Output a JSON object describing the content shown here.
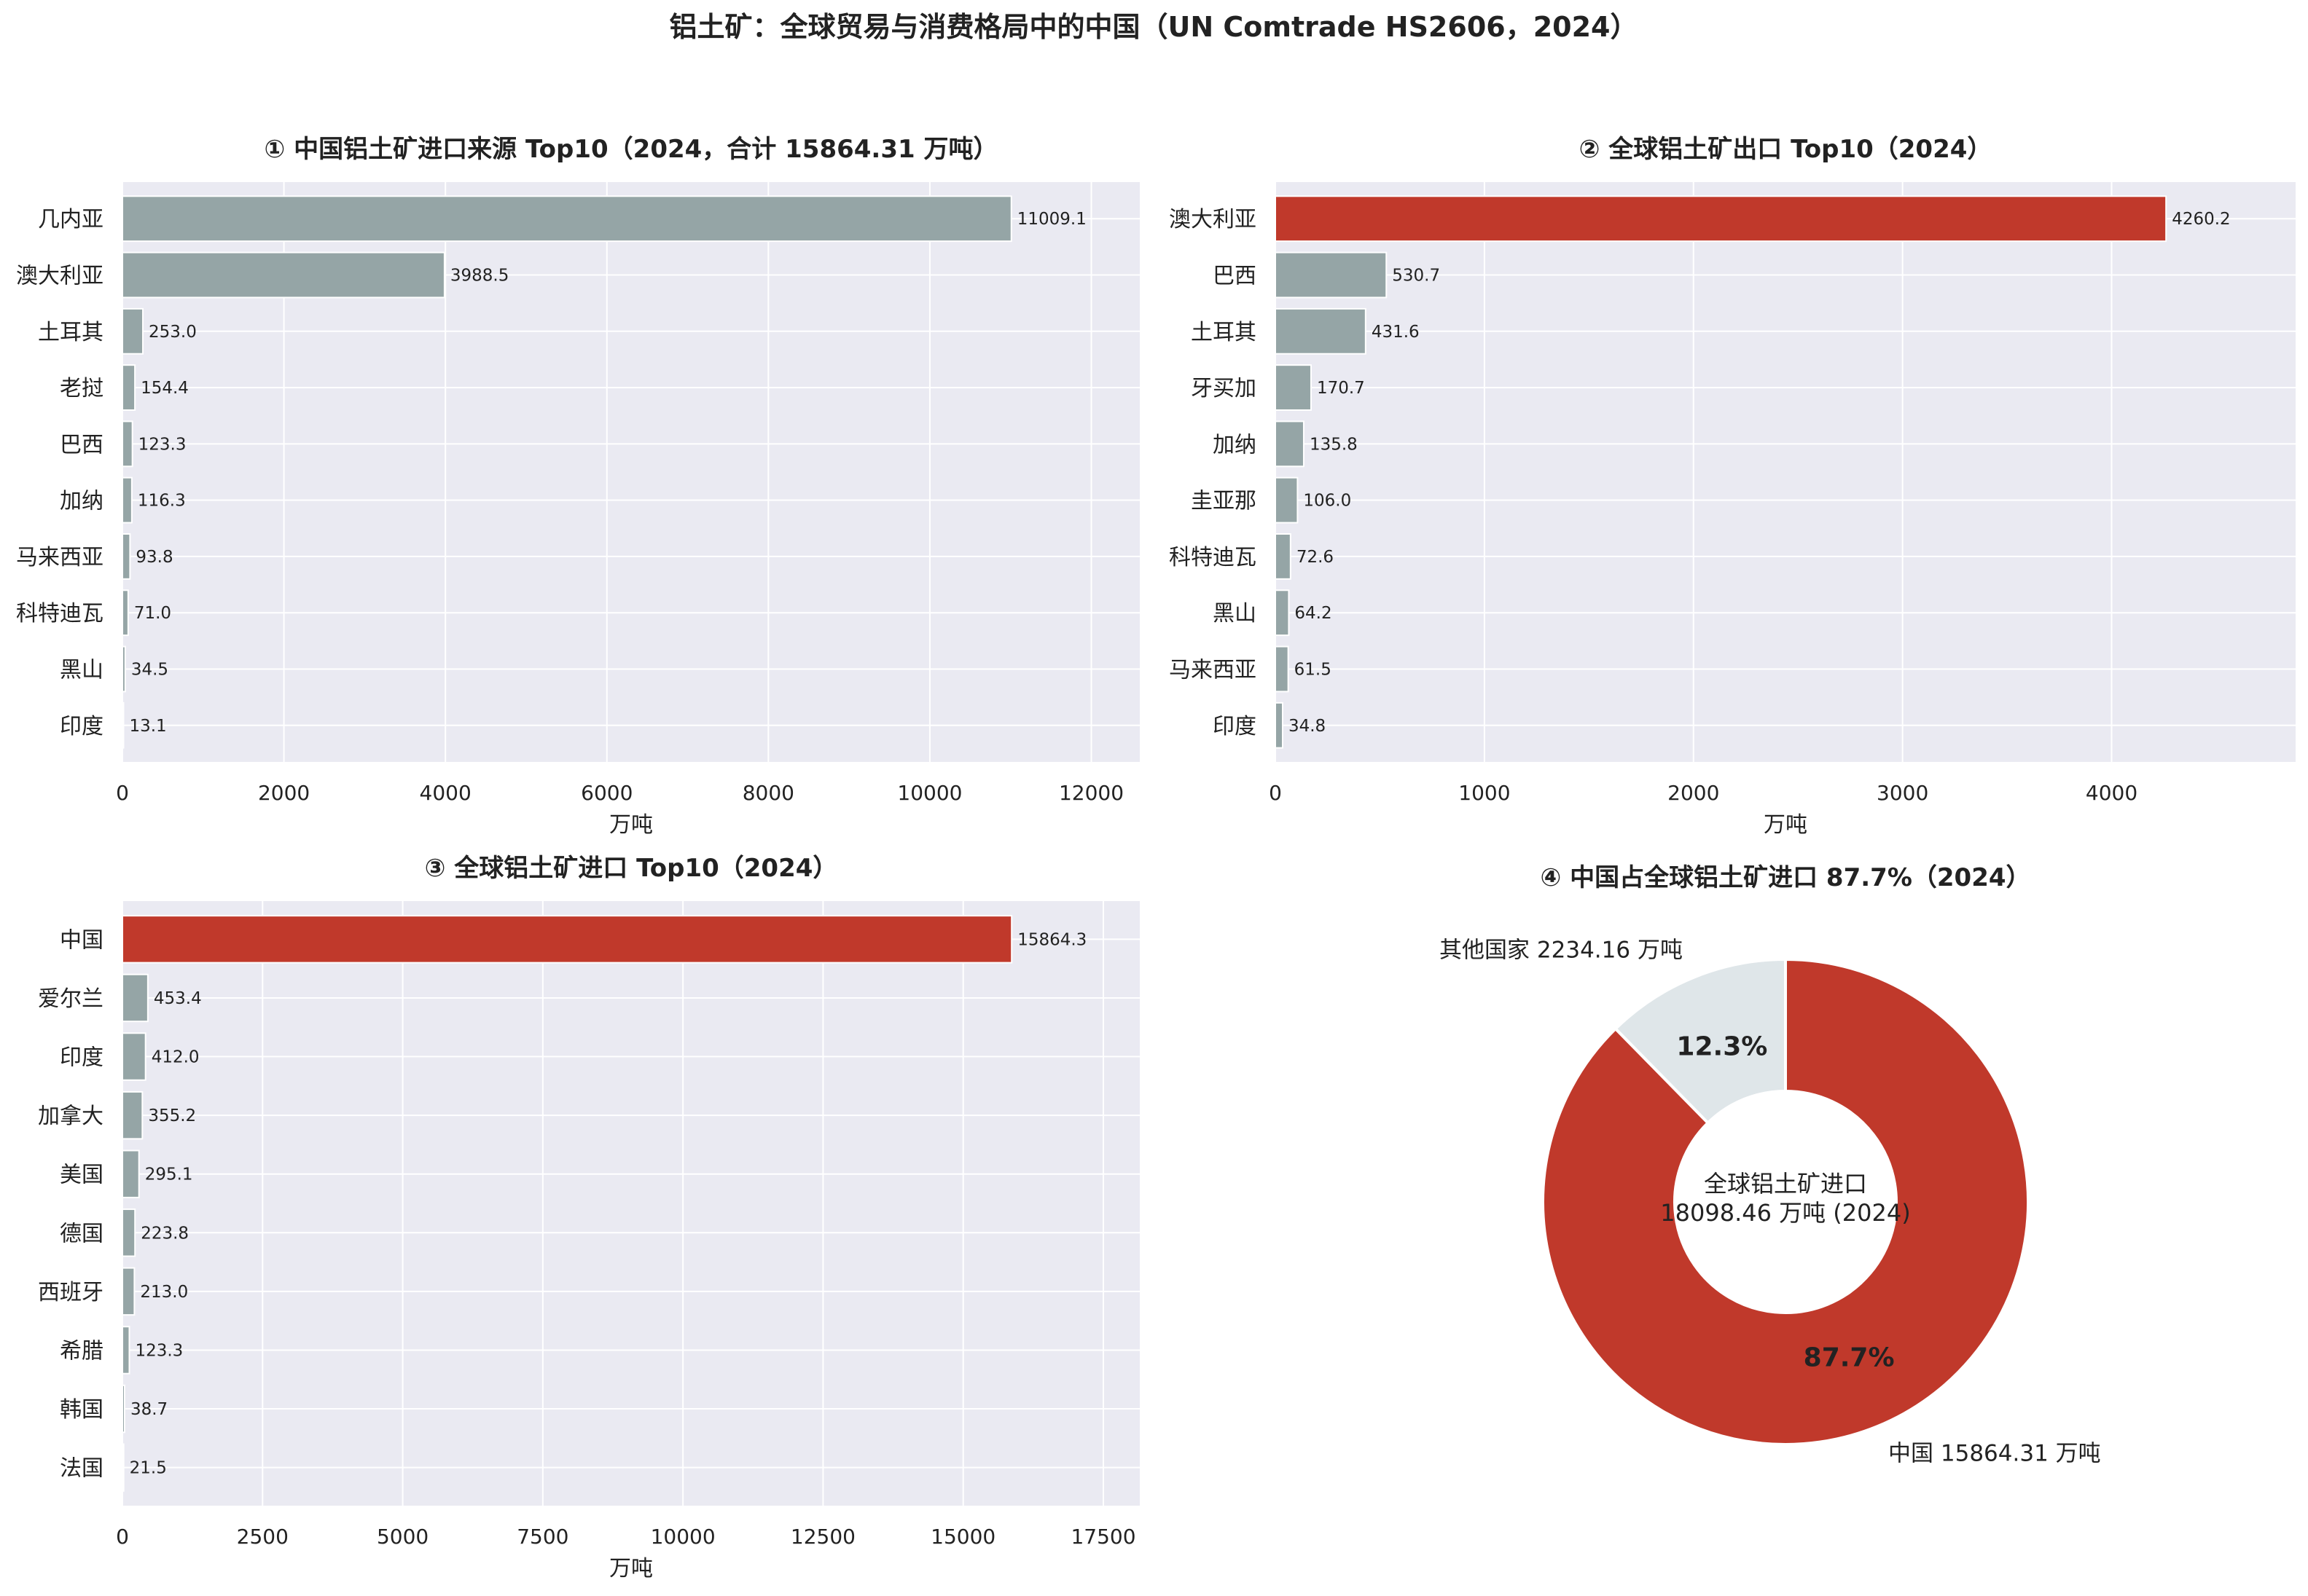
{
  "suptitle": "铝土矿：全球贸易与消费格局中的中国（UN Comtrade HS2606，2024）",
  "colors": {
    "highlight": "#c0392b",
    "bar": "#95a5a6",
    "plot_bg": "#eaeaf2",
    "grid": "#ffffff",
    "pie_other": "#dfe6e9",
    "text": "#222222"
  },
  "chart_data": [
    {
      "type": "bar",
      "orientation": "horizontal",
      "title": "① 中国铝土矿进口来源 Top10（2024，合计 15864.31 万吨）",
      "xlabel": "万吨",
      "xlim": [
        0,
        12600
      ],
      "xticks": [
        0,
        2000,
        4000,
        6000,
        8000,
        10000,
        12000
      ],
      "categories": [
        "几内亚",
        "澳大利亚",
        "土耳其",
        "老挝",
        "巴西",
        "加纳",
        "马来西亚",
        "科特迪瓦",
        "黑山",
        "印度"
      ],
      "values": [
        11009.1,
        3988.5,
        253.0,
        154.4,
        123.3,
        116.3,
        93.8,
        71.0,
        34.5,
        13.1
      ],
      "value_labels": [
        "11009.1",
        "3988.5",
        "253.0",
        "154.4",
        "123.3",
        "116.3",
        "93.8",
        "71.0",
        "34.5",
        "13.1"
      ],
      "highlight_index": -1,
      "grid": true
    },
    {
      "type": "bar",
      "orientation": "horizontal",
      "title": "② 全球铝土矿出口 Top10（2024）",
      "xlabel": "万吨",
      "xlim": [
        0,
        4880
      ],
      "xticks": [
        0,
        1000,
        2000,
        3000,
        4000
      ],
      "categories": [
        "澳大利亚",
        "巴西",
        "土耳其",
        "牙买加",
        "加纳",
        "圭亚那",
        "科特迪瓦",
        "黑山",
        "马来西亚",
        "印度"
      ],
      "values": [
        4260.2,
        530.7,
        431.6,
        170.7,
        135.8,
        106.0,
        72.6,
        64.2,
        61.5,
        34.8
      ],
      "value_labels": [
        "4260.2",
        "530.7",
        "431.6",
        "170.7",
        "135.8",
        "106.0",
        "72.6",
        "64.2",
        "61.5",
        "34.8"
      ],
      "highlight_index": 0,
      "grid": true
    },
    {
      "type": "bar",
      "orientation": "horizontal",
      "title": "③ 全球铝土矿进口 Top10（2024）",
      "xlabel": "万吨",
      "xlim": [
        0,
        18150
      ],
      "xticks": [
        0,
        2500,
        5000,
        7500,
        10000,
        12500,
        15000,
        17500
      ],
      "categories": [
        "中国",
        "爱尔兰",
        "印度",
        "加拿大",
        "美国",
        "德国",
        "西班牙",
        "希腊",
        "韩国",
        "法国"
      ],
      "values": [
        15864.3,
        453.4,
        412.0,
        355.2,
        295.1,
        223.8,
        213.0,
        123.3,
        38.7,
        21.5
      ],
      "value_labels": [
        "15864.3",
        "453.4",
        "412.0",
        "355.2",
        "295.1",
        "223.8",
        "213.0",
        "123.3",
        "38.7",
        "21.5"
      ],
      "highlight_index": 0,
      "grid": true
    },
    {
      "type": "pie",
      "donut": true,
      "title": "④ 中国占全球铝土矿进口 87.7%（2024）",
      "slices": [
        {
          "label": "中国 15864.31 万吨",
          "value": 15864.31,
          "pct_label": "87.7%",
          "color": "#c0392b"
        },
        {
          "label": "其他国家 2234.16 万吨",
          "value": 2234.16,
          "pct_label": "12.3%",
          "color": "#dfe6e9"
        }
      ],
      "center_text": [
        "全球铝土矿进口",
        "18098.46 万吨 (2024)"
      ]
    }
  ]
}
